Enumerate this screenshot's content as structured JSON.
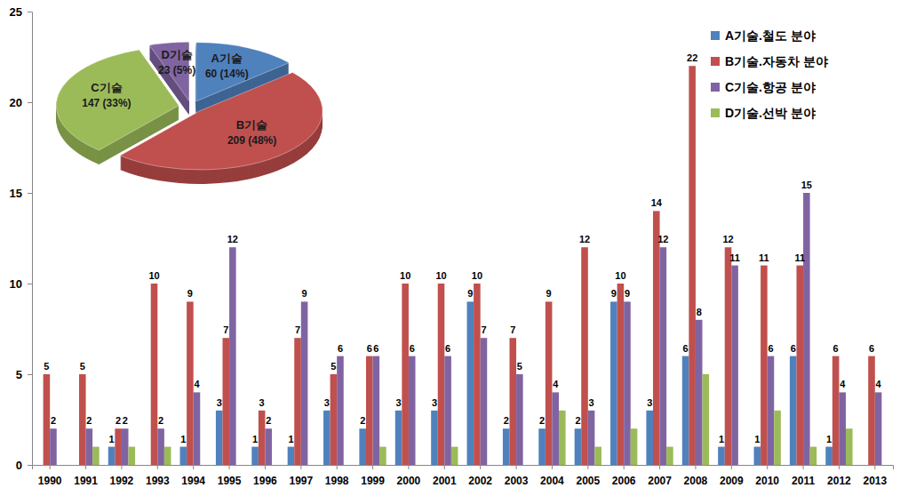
{
  "chart_data": [
    {
      "type": "bar",
      "categories": [
        "1990",
        "1991",
        "1992",
        "1993",
        "1994",
        "1995",
        "1996",
        "1997",
        "1998",
        "1999",
        "2000",
        "2001",
        "2002",
        "2003",
        "2004",
        "2005",
        "2006",
        "2007",
        "2008",
        "2009",
        "2010",
        "2011",
        "2012",
        "2013"
      ],
      "series": [
        {
          "name": "A기술.철도 분야",
          "color": "#4f81bd",
          "values": [
            null,
            null,
            1,
            null,
            1,
            3,
            1,
            1,
            3,
            2,
            3,
            3,
            9,
            2,
            2,
            2,
            9,
            3,
            6,
            1,
            1,
            6,
            1,
            null
          ]
        },
        {
          "name": "B기술.자동차 분야",
          "color": "#c0504d",
          "values": [
            5,
            5,
            2,
            10,
            9,
            7,
            3,
            7,
            5,
            6,
            10,
            10,
            10,
            7,
            9,
            12,
            10,
            14,
            22,
            12,
            11,
            11,
            6,
            6
          ]
        },
        {
          "name": "C기술.항공 분야",
          "color": "#8064a2",
          "values": [
            2,
            2,
            2,
            2,
            4,
            12,
            2,
            9,
            6,
            6,
            6,
            6,
            7,
            5,
            4,
            3,
            9,
            12,
            8,
            11,
            6,
            15,
            4,
            4
          ]
        },
        {
          "name": "D기술.선박 분야",
          "color": "#9bbb59",
          "data_labels": false,
          "values": [
            null,
            1,
            1,
            1,
            null,
            null,
            null,
            null,
            null,
            1,
            null,
            1,
            null,
            null,
            3,
            1,
            2,
            1,
            5,
            null,
            3,
            1,
            2,
            null
          ]
        }
      ],
      "ylim": [
        0,
        25
      ],
      "yticks": [
        0,
        5,
        10,
        15,
        20,
        25
      ],
      "grid": false,
      "legend": "top-right",
      "data_labels": true
    },
    {
      "type": "pie",
      "categories": [
        "A기술",
        "B기술",
        "C기술",
        "D기술"
      ],
      "values": [
        60,
        209,
        147,
        23
      ],
      "value_labels": [
        "60 (14%)",
        "209 (48%)",
        "147 (33%)",
        "23 (5%)"
      ],
      "colors": [
        "#4f81bd",
        "#c0504d",
        "#9bbb59",
        "#8064a2"
      ],
      "data_labels": true
    }
  ]
}
